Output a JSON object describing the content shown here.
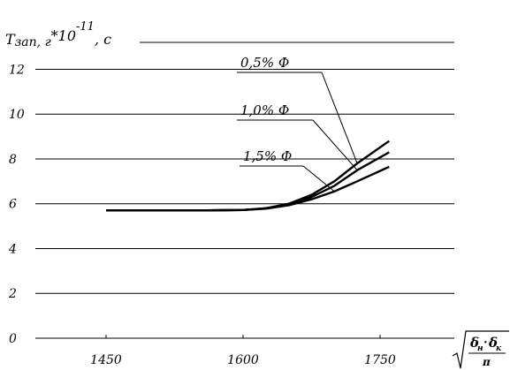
{
  "chart_data": {
    "type": "line",
    "ylabel_main": "T",
    "ylabel_sub": "зап, г",
    "ylabel_mult": "*10",
    "ylabel_exp": "-11",
    "ylabel_unit": ", c",
    "xlabel_formula": {
      "num_a": "δ",
      "num_a_sub": "н",
      "dot": "·",
      "num_b": "δ",
      "num_b_sub": "к",
      "den": "π"
    },
    "x_ticks": [
      "1450",
      "1600",
      "1750"
    ],
    "y_ticks": [
      "0",
      "2",
      "4",
      "6",
      "8",
      "10",
      "12"
    ],
    "xlim": [
      1400,
      1800
    ],
    "ylim": [
      0,
      13.2
    ],
    "grid": "horizontal",
    "series": [
      {
        "name": "0,5% Ф",
        "x": [
          1450,
          1500,
          1550,
          1600,
          1625,
          1650,
          1675,
          1700,
          1725,
          1760
        ],
        "y": [
          5.7,
          5.7,
          5.7,
          5.72,
          5.8,
          6.0,
          6.4,
          7.0,
          7.8,
          8.8
        ]
      },
      {
        "name": "1,0% Ф",
        "x": [
          1450,
          1500,
          1550,
          1600,
          1625,
          1650,
          1675,
          1700,
          1725,
          1760
        ],
        "y": [
          5.7,
          5.7,
          5.7,
          5.72,
          5.8,
          5.97,
          6.3,
          6.8,
          7.5,
          8.3
        ]
      },
      {
        "name": "1,5% Ф",
        "x": [
          1450,
          1500,
          1550,
          1600,
          1625,
          1650,
          1675,
          1700,
          1725,
          1760
        ],
        "y": [
          5.7,
          5.7,
          5.7,
          5.72,
          5.78,
          5.93,
          6.2,
          6.55,
          7.0,
          7.65
        ]
      }
    ]
  }
}
